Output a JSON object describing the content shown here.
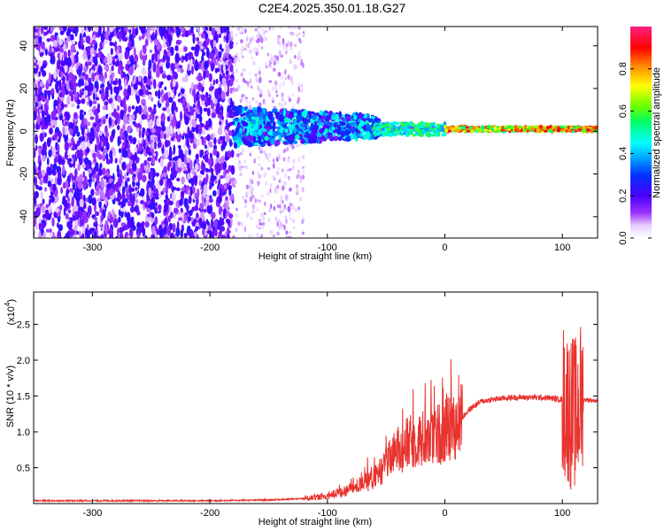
{
  "title": "C2E4.2025.350.01.18.G27",
  "chart_data": [
    {
      "type": "heatmap",
      "xlabel": "Height of straight line (km)",
      "ylabel": "Frequency (Hz)",
      "xlim": [
        -350,
        130
      ],
      "ylim": [
        -50,
        49
      ],
      "xticks": [
        -300,
        -200,
        -100,
        0,
        100
      ],
      "xtick_labels": [
        "-300",
        "-200",
        "-100",
        "0",
        "100"
      ],
      "yticks": [
        -40,
        -20,
        0,
        20,
        40
      ],
      "ytick_labels": [
        "-40",
        "-20",
        "0",
        "20",
        "40"
      ],
      "colorbar": {
        "label": "Normalized spectral amplitude",
        "range": [
          0,
          1
        ],
        "ticks": [
          0.0,
          0.2,
          0.4,
          0.6,
          0.8
        ],
        "tick_labels": [
          "0.0",
          "0.2",
          "0.4",
          "0.6",
          "0.8"
        ],
        "colormap": "rainbow (white, purple, blue, cyan, green, yellow, red, magenta)"
      },
      "regions": [
        {
          "x_range": [
            -350,
            -180
          ],
          "description": "broadband noise across all frequencies, amplitude 0.1-0.3"
        },
        {
          "x_range": [
            -180,
            -120
          ],
          "description": "sparse weak noise"
        },
        {
          "x_range": [
            -180,
            -60
          ],
          "description": "signal band near 0 Hz, width +-8 Hz, amplitude 0.2-0.5"
        },
        {
          "x_range": [
            -60,
            130
          ],
          "description": "narrow signal band near 0-2 Hz, amplitude 0.5-0.95"
        }
      ]
    },
    {
      "type": "line",
      "xlabel": "Height of straight line (km)",
      "ylabel": "SNR (10 * v/v)",
      "yscale_label": "(x10",
      "yscale_exponent": "4",
      "xlim": [
        -350,
        130
      ],
      "ylim": [
        0,
        2.95
      ],
      "xticks": [
        -300,
        -200,
        -100,
        0,
        100
      ],
      "xtick_labels": [
        "-300",
        "-200",
        "-100",
        "0",
        "100"
      ],
      "yticks": [
        0.5,
        1.0,
        1.5,
        2.0,
        2.5
      ],
      "ytick_labels": [
        "0.5",
        "1.0",
        "1.5",
        "2.0",
        "2.5"
      ],
      "color": "#e8332f",
      "envelope": {
        "x": [
          -350,
          -200,
          -150,
          -120,
          -100,
          -80,
          -60,
          -50,
          -40,
          -30,
          -20,
          -10,
          0,
          10,
          20,
          30,
          40,
          50,
          60,
          70,
          80,
          90,
          100,
          105,
          108,
          110,
          112,
          115,
          120,
          130
        ],
        "y": [
          0.04,
          0.04,
          0.05,
          0.07,
          0.1,
          0.2,
          0.35,
          0.55,
          0.75,
          0.85,
          0.9,
          0.95,
          1.0,
          1.1,
          1.3,
          1.42,
          1.45,
          1.47,
          1.48,
          1.48,
          1.48,
          1.47,
          1.45,
          1.35,
          1.25,
          1.3,
          1.2,
          1.45,
          1.45,
          1.43
        ]
      }
    }
  ]
}
